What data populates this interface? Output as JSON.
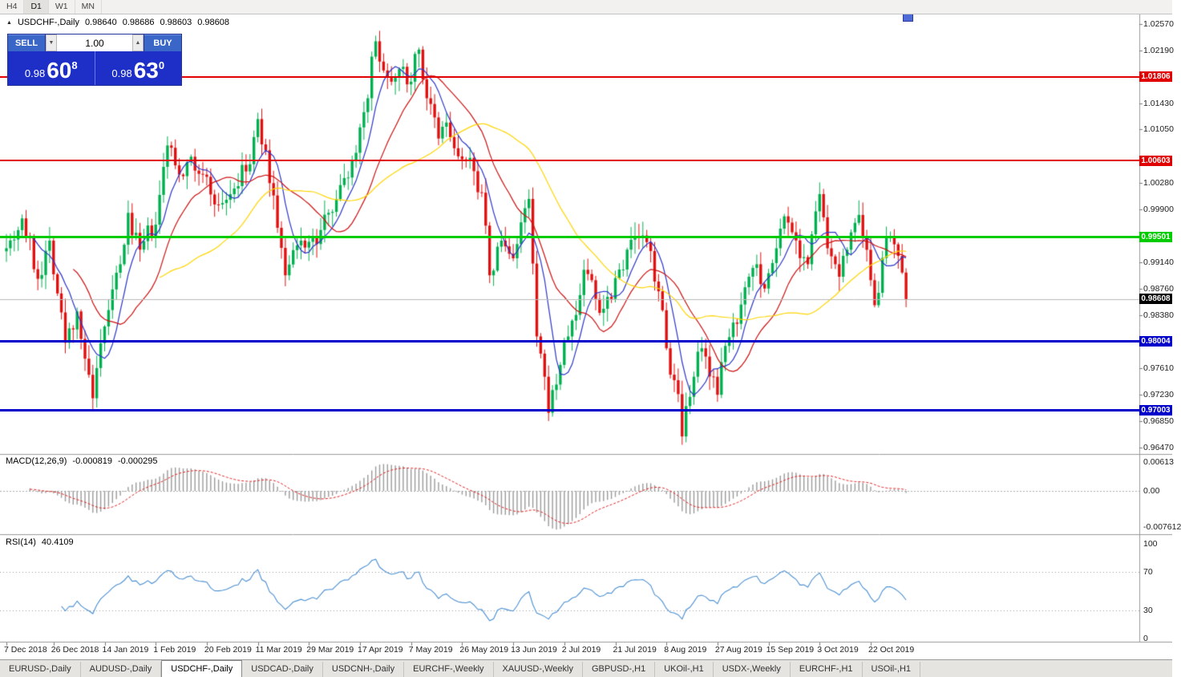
{
  "toolbar": {
    "timeframes": [
      "H4",
      "D1",
      "W1",
      "MN"
    ],
    "active_timeframe": "D1"
  },
  "chart_header": {
    "collapse_icon": "▲",
    "title": "USDCHF-,Daily",
    "open": "0.98640",
    "high": "0.98686",
    "low": "0.98603",
    "close": "0.98608"
  },
  "trade_widget": {
    "sell_label": "SELL",
    "buy_label": "BUY",
    "volume": "1.00",
    "volume_down_icon": "▼",
    "volume_up_icon": "▲",
    "sell_price": {
      "base": "0.98",
      "pips": "60",
      "point": "8"
    },
    "buy_price": {
      "base": "0.98",
      "pips": "63",
      "point": "0"
    }
  },
  "chart_data": {
    "type": "candlestick",
    "symbol": "USDCHF",
    "timeframe": "Daily",
    "candle_count": 230,
    "seed": 7,
    "y_range": {
      "top": 1.02591,
      "bottom": 0.96412
    },
    "y_axis_labels": [
      {
        "text": "1.02570",
        "value": 1.0257
      },
      {
        "text": "1.02190",
        "value": 1.0219
      },
      {
        "text": "1.01430",
        "value": 1.0143
      },
      {
        "text": "1.01050",
        "value": 1.0105
      },
      {
        "text": "1.00280",
        "value": 1.0028
      },
      {
        "text": "0.99900",
        "value": 0.999
      },
      {
        "text": "0.99140",
        "value": 0.9914
      },
      {
        "text": "0.98760",
        "value": 0.9876
      },
      {
        "text": "0.98380",
        "value": 0.9838
      },
      {
        "text": "0.97610",
        "value": 0.9761
      },
      {
        "text": "0.97230",
        "value": 0.9723
      },
      {
        "text": "0.96850",
        "value": 0.9685
      },
      {
        "text": "0.96470",
        "value": 0.9647
      }
    ],
    "x_axis_labels": [
      {
        "label": "7 Dec 2018",
        "index": 0
      },
      {
        "label": "26 Dec 2018",
        "index": 12
      },
      {
        "label": "14 Jan 2019",
        "index": 25
      },
      {
        "label": "1 Feb 2019",
        "index": 38
      },
      {
        "label": "20 Feb 2019",
        "index": 51
      },
      {
        "label": "11 Mar 2019",
        "index": 64
      },
      {
        "label": "29 Mar 2019",
        "index": 77
      },
      {
        "label": "17 Apr 2019",
        "index": 90
      },
      {
        "label": "7 May 2019",
        "index": 103
      },
      {
        "label": "26 May 2019",
        "index": 116
      },
      {
        "label": "13 Jun 2019",
        "index": 129
      },
      {
        "label": "2 Jul 2019",
        "index": 142
      },
      {
        "label": "21 Jul 2019",
        "index": 155
      },
      {
        "label": "8 Aug 2019",
        "index": 168
      },
      {
        "label": "27 Aug 2019",
        "index": 181
      },
      {
        "label": "15 Sep 2019",
        "index": 194
      },
      {
        "label": "3 Oct 2019",
        "index": 207
      },
      {
        "label": "22 Oct 2019",
        "index": 220
      }
    ],
    "price_path": [
      [
        0,
        0.9934
      ],
      [
        4,
        0.9977
      ],
      [
        8,
        0.989
      ],
      [
        11,
        0.9945
      ],
      [
        15,
        0.9798
      ],
      [
        18,
        0.9843
      ],
      [
        20,
        0.9775
      ],
      [
        22,
        0.9718
      ],
      [
        26,
        0.9845
      ],
      [
        29,
        0.9911
      ],
      [
        31,
        0.9985
      ],
      [
        34,
        0.9932
      ],
      [
        38,
        0.9968
      ],
      [
        41,
        1.0082
      ],
      [
        44,
        1.004
      ],
      [
        46,
        1.0058
      ],
      [
        50,
        1.004
      ],
      [
        54,
        0.9997
      ],
      [
        58,
        1.002
      ],
      [
        62,
        1.0055
      ],
      [
        64,
        1.012
      ],
      [
        66,
        1.0075
      ],
      [
        68,
        1.001
      ],
      [
        71,
        0.9895
      ],
      [
        75,
        0.9945
      ],
      [
        79,
        0.994
      ],
      [
        82,
        0.9985
      ],
      [
        85,
        1.0025
      ],
      [
        88,
        1.006
      ],
      [
        91,
        1.013
      ],
      [
        94,
        1.0232
      ],
      [
        97,
        1.018
      ],
      [
        100,
        1.0192
      ],
      [
        102,
        1.017
      ],
      [
        105,
        1.022
      ],
      [
        107,
        1.015
      ],
      [
        110,
        1.0092
      ],
      [
        112,
        1.0115
      ],
      [
        114,
        1.0078
      ],
      [
        116,
        1.0062
      ],
      [
        119,
        1.0045
      ],
      [
        121,
        1.0014
      ],
      [
        123,
        0.9895
      ],
      [
        126,
        0.9945
      ],
      [
        128,
        0.9926
      ],
      [
        130,
        0.994
      ],
      [
        133,
        1.0005
      ],
      [
        135,
        0.9807
      ],
      [
        137,
        0.9749
      ],
      [
        138,
        0.9697
      ],
      [
        141,
        0.9766
      ],
      [
        143,
        0.9807
      ],
      [
        145,
        0.9838
      ],
      [
        147,
        0.9903
      ],
      [
        149,
        0.9888
      ],
      [
        151,
        0.9841
      ],
      [
        153,
        0.9864
      ],
      [
        155,
        0.9891
      ],
      [
        158,
        0.9932
      ],
      [
        161,
        0.995
      ],
      [
        164,
        0.993
      ],
      [
        166,
        0.9872
      ],
      [
        168,
        0.979
      ],
      [
        169,
        0.9752
      ],
      [
        171,
        0.9724
      ],
      [
        172,
        0.9663
      ],
      [
        174,
        0.972
      ],
      [
        175,
        0.9749
      ],
      [
        177,
        0.979
      ],
      [
        178,
        0.9778
      ],
      [
        180,
        0.9749
      ],
      [
        181,
        0.9723
      ],
      [
        182,
        0.977
      ],
      [
        184,
        0.9806
      ],
      [
        187,
        0.9853
      ],
      [
        189,
        0.9893
      ],
      [
        191,
        0.9911
      ],
      [
        193,
        0.9876
      ],
      [
        196,
        0.9934
      ],
      [
        198,
        0.998
      ],
      [
        200,
        0.9957
      ],
      [
        204,
        0.9911
      ],
      [
        207,
        1.0012
      ],
      [
        209,
        0.9934
      ],
      [
        211,
        0.9911
      ],
      [
        212,
        0.9893
      ],
      [
        215,
        0.9957
      ],
      [
        217,
        0.9982
      ],
      [
        218,
        0.995
      ],
      [
        220,
        0.9888
      ],
      [
        221,
        0.9852
      ],
      [
        223,
        0.992
      ],
      [
        225,
        0.995
      ],
      [
        227,
        0.9923
      ],
      [
        228,
        0.9899
      ],
      [
        229,
        0.98608
      ]
    ],
    "current_price": {
      "label": "0.98608",
      "value": 0.98608
    },
    "levels": [
      {
        "label": "1.01806",
        "value": 1.01806,
        "color": "#e00000",
        "width": 2,
        "type": "resistance"
      },
      {
        "label": "1.00603",
        "value": 1.00603,
        "color": "#e00000",
        "width": 2,
        "type": "resistance"
      },
      {
        "label": "0.99501",
        "value": 0.99501,
        "color": "#00cc00",
        "width": 3,
        "type": "pivot"
      },
      {
        "label": "0.98004",
        "value": 0.98004,
        "color": "#0000cc",
        "width": 3,
        "type": "support"
      },
      {
        "label": "0.97003",
        "value": 0.97003,
        "color": "#0000cc",
        "width": 3,
        "type": "support"
      }
    ],
    "moving_averages": [
      {
        "period": 7,
        "color": "#2b35c8"
      },
      {
        "period": 18,
        "color": "#cc1010"
      },
      {
        "period": 40,
        "color": "#ffd400"
      }
    ],
    "colors": {
      "bull": "#00b050",
      "bear": "#e01010",
      "macd_histogram": "#9a9a9a",
      "macd_signal": "#e02020",
      "rsi_line": "#4a8fd2"
    },
    "indicators": {
      "macd": {
        "name": "MACD(12,26,9)",
        "value_main": "-0.000819",
        "value_signal": "-0.000295",
        "fast": 12,
        "slow": 26,
        "signal": 9,
        "axis_labels": [
          {
            "text": "0.00613",
            "value": 0.00613
          },
          {
            "text": "0.00",
            "value": 0
          },
          {
            "text": "-0.007612",
            "value": -0.007612
          }
        ]
      },
      "rsi": {
        "name": "RSI(14)",
        "value": "40.4109",
        "period": 14,
        "axis_labels": [
          {
            "text": "100",
            "value": 100
          },
          {
            "text": "70",
            "value": 70
          },
          {
            "text": "30",
            "value": 30
          },
          {
            "text": "0",
            "value": 0
          }
        ],
        "guide_levels": [
          70,
          30
        ]
      }
    }
  },
  "bottom_tabs": {
    "active_index": 2,
    "tabs": [
      "EURUSD-,Daily",
      "AUDUSD-,Daily",
      "USDCHF-,Daily",
      "USDCAD-,Daily",
      "USDCNH-,Daily",
      "EURCHF-,Weekly",
      "XAUUSD-,Weekly",
      "GBPUSD-,H1",
      "UKOil-,H1",
      "USDX-,Weekly",
      "EURCHF-,H1",
      "USOil-,H1"
    ]
  }
}
